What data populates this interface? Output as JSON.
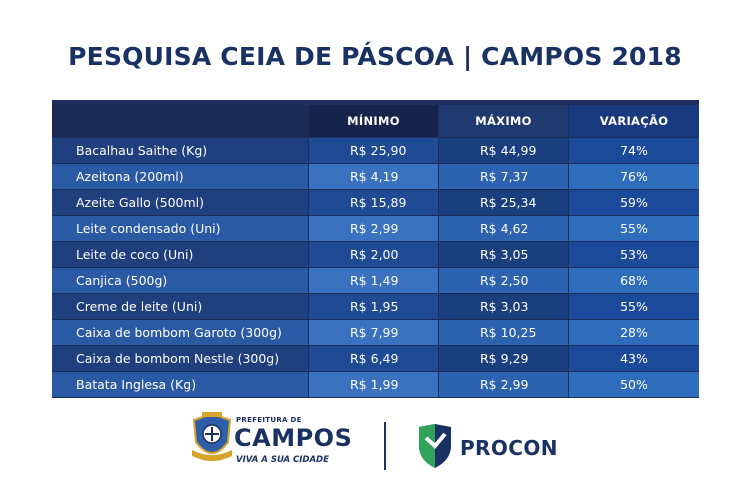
{
  "title": "PESQUISA CEIA DE PÁSCOA | CAMPOS 2018",
  "table": {
    "headers": [
      "",
      "MÍNIMO",
      "MÁXIMO",
      "VARIAÇÃO"
    ],
    "rows": [
      {
        "name": "Bacalhau Saithe (Kg)",
        "min": "R$ 25,90",
        "max": "R$ 44,99",
        "var": "74%"
      },
      {
        "name": "Azeitona (200ml)",
        "min": "R$ 4,19",
        "max": "R$ 7,37",
        "var": "76%"
      },
      {
        "name": "Azeite Gallo (500ml)",
        "min": "R$ 15,89",
        "max": "R$ 25,34",
        "var": "59%"
      },
      {
        "name": "Leite condensado (Uni)",
        "min": "R$ 2,99",
        "max": "R$ 4,62",
        "var": "55%"
      },
      {
        "name": "Leite de coco (Uni)",
        "min": "R$ 2,00",
        "max": "R$ 3,05",
        "var": "53%"
      },
      {
        "name": "Canjica (500g)",
        "min": "R$ 1,49",
        "max": "R$ 2,50",
        "var": "68%"
      },
      {
        "name": "Creme de leite (Uni)",
        "min": "R$ 1,95",
        "max": "R$ 3,03",
        "var": "55%"
      },
      {
        "name": "Caixa de bombom Garoto (300g)",
        "min": "R$ 7,99",
        "max": "R$ 10,25",
        "var": "28%"
      },
      {
        "name": "Caixa de bombom Nestle (300g)",
        "min": "R$ 6,49",
        "max": "R$ 9,29",
        "var": "43%"
      },
      {
        "name": "Batata Inglesa (Kg)",
        "min": "R$ 1,99",
        "max": "R$ 2,99",
        "var": "50%"
      }
    ]
  },
  "colors": {
    "title": "#1a3263",
    "table_bg": "#1c2e5c",
    "header": [
      "#1a2a55",
      "#16244c",
      "#1f3a6e",
      "#1a3a80"
    ],
    "odd_row": [
      "#1f3f7e",
      "#1f4a94",
      "#1b3e7e",
      "#1b4a9a"
    ],
    "even_row": [
      "#2a5aa4",
      "#3b72c0",
      "#2c62b0",
      "#2e6cbc"
    ]
  },
  "footer": {
    "campos_small": "PREFEITURA DE",
    "campos_big": "CAMPOS",
    "campos_tagline": "VIVA A SUA CIDADE",
    "procon": "PROCON"
  }
}
